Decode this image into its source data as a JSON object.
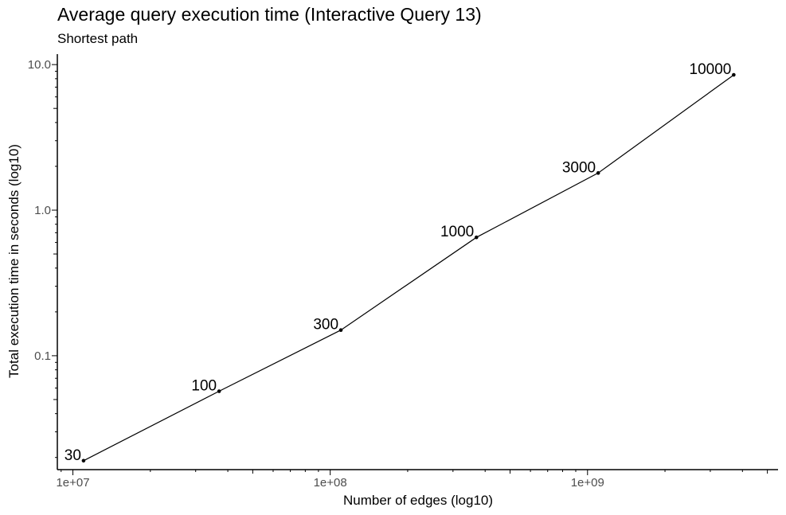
{
  "chart_data": {
    "type": "line",
    "title": "Average query execution time (Interactive Query 13)",
    "subtitle": "Shortest path",
    "xlabel": "Number of edges (log10)",
    "ylabel": "Total execution time in seconds (log10)",
    "x_scale": "log10",
    "y_scale": "log10",
    "xlim": [
      8700000,
      5500000000
    ],
    "ylim": [
      0.0165,
      11.8
    ],
    "x_ticks": [
      {
        "value": 10000000,
        "label": "1e+07"
      },
      {
        "value": 100000000,
        "label": "1e+08"
      },
      {
        "value": 1000000000,
        "label": "1e+09"
      }
    ],
    "y_ticks": [
      {
        "value": 0.1,
        "label": "0.1"
      },
      {
        "value": 1,
        "label": "1.0"
      },
      {
        "value": 10,
        "label": "10.0"
      }
    ],
    "grid": false,
    "legend": "none",
    "colors": {
      "line": "#000000",
      "text": "#000000",
      "tick_text": "#4d4d4d"
    },
    "series": [
      {
        "points": [
          {
            "label": "30",
            "x": 11000000,
            "y": 0.019
          },
          {
            "label": "100",
            "x": 37000000,
            "y": 0.057
          },
          {
            "label": "300",
            "x": 110000000,
            "y": 0.15
          },
          {
            "label": "1000",
            "x": 370000000,
            "y": 0.65
          },
          {
            "label": "3000",
            "x": 1100000000,
            "y": 1.8
          },
          {
            "label": "10000",
            "x": 3700000000,
            "y": 8.5
          }
        ]
      }
    ]
  }
}
